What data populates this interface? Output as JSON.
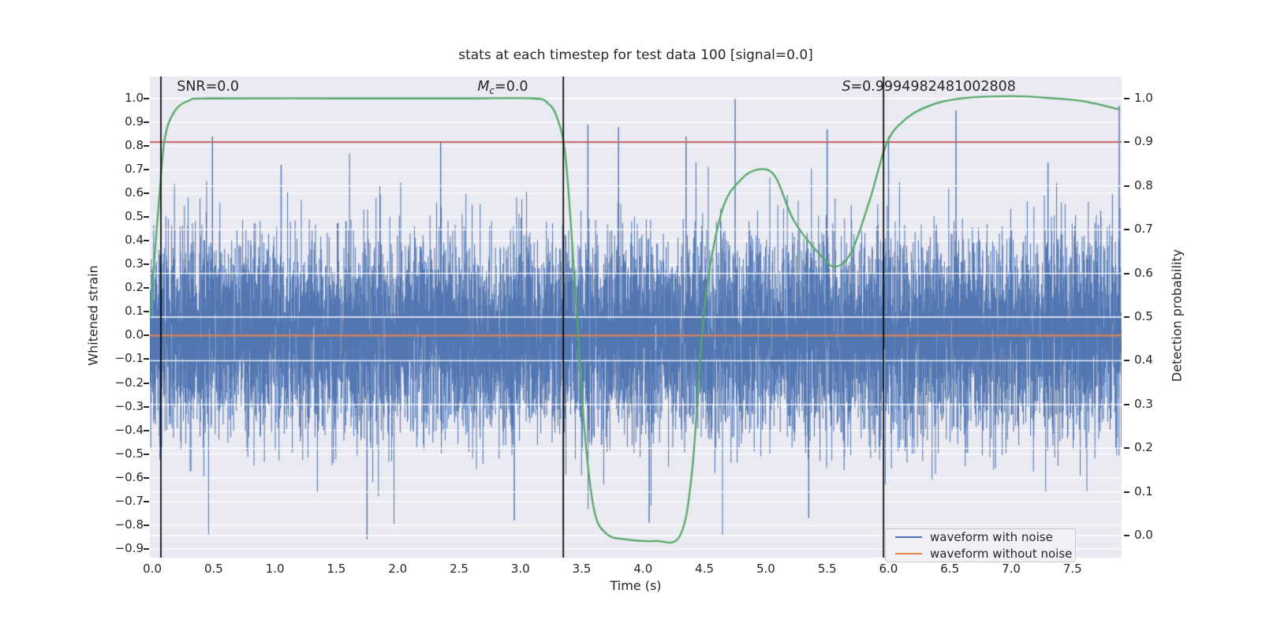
{
  "chart_data": {
    "type": "line",
    "title": "stats at each timestep for test data 100 [signal=0.0]",
    "xlabel": "Time (s)",
    "ylabel_left": "Whitened strain",
    "ylabel_right": "Detection probability",
    "xlim": [
      -0.02,
      7.9
    ],
    "ylim_left": [
      -0.937,
      1.093
    ],
    "ylim_right": [
      -0.05,
      1.05
    ],
    "x_ticks": [
      0.0,
      0.5,
      1.0,
      1.5,
      2.0,
      2.5,
      3.0,
      3.5,
      4.0,
      4.5,
      5.0,
      5.5,
      6.0,
      6.5,
      7.0,
      7.5
    ],
    "left_ticks": [
      1.0,
      0.9,
      0.8,
      0.7,
      0.6,
      0.5,
      0.4,
      0.3,
      0.2,
      0.1,
      0.0,
      -0.1,
      -0.2,
      -0.3,
      -0.4,
      -0.5,
      -0.6,
      -0.7,
      -0.8,
      -0.9
    ],
    "right_ticks": [
      1.0,
      0.9,
      0.8,
      0.7,
      0.6,
      0.5,
      0.4,
      0.3,
      0.2,
      0.1,
      0.0
    ],
    "grid": true,
    "annotations": [
      {
        "t": 0.2,
        "italic": "",
        "sub": "",
        "text": "SNR=0.0"
      },
      {
        "t": 2.65,
        "italic": "M",
        "sub": "c",
        "text": "=0.0"
      },
      {
        "t": 5.62,
        "italic": "S",
        "sub": "",
        "text": "=0.9994982481002808"
      }
    ],
    "threshold_right_axis": 0.9,
    "signal_without_noise_value": 0.0,
    "vlines_t": [
      0.07,
      3.35,
      5.96
    ],
    "detection_probability_keypoints": [
      [
        -0.02,
        0.5
      ],
      [
        0.05,
        0.75
      ],
      [
        0.1,
        0.905
      ],
      [
        0.18,
        0.97
      ],
      [
        0.3,
        0.995
      ],
      [
        0.46,
        1.0
      ],
      [
        1.5,
        1.0
      ],
      [
        2.6,
        1.0
      ],
      [
        3.1,
        1.0
      ],
      [
        3.22,
        0.99
      ],
      [
        3.3,
        0.955
      ],
      [
        3.37,
        0.86
      ],
      [
        3.45,
        0.55
      ],
      [
        3.52,
        0.25
      ],
      [
        3.6,
        0.06
      ],
      [
        3.7,
        0.005
      ],
      [
        3.85,
        -0.008
      ],
      [
        4.1,
        -0.012
      ],
      [
        4.3,
        0.0
      ],
      [
        4.4,
        0.15
      ],
      [
        4.5,
        0.52
      ],
      [
        4.64,
        0.74
      ],
      [
        4.8,
        0.815
      ],
      [
        4.95,
        0.838
      ],
      [
        5.08,
        0.82
      ],
      [
        5.23,
        0.72
      ],
      [
        5.45,
        0.64
      ],
      [
        5.57,
        0.615
      ],
      [
        5.7,
        0.65
      ],
      [
        5.85,
        0.77
      ],
      [
        5.99,
        0.9
      ],
      [
        6.15,
        0.955
      ],
      [
        6.35,
        0.985
      ],
      [
        6.6,
        1.0
      ],
      [
        7.0,
        1.005
      ],
      [
        7.35,
        1.0
      ],
      [
        7.6,
        0.993
      ],
      [
        7.88,
        0.975
      ]
    ],
    "noise_series": {
      "description": "whitened strain noise, zero mean",
      "sigma": 0.2,
      "seed": 1337,
      "samples_per_column": 6,
      "notable_spikes": [
        [
          0.49,
          0.84
        ],
        [
          1.05,
          0.72
        ],
        [
          1.75,
          -0.86
        ],
        [
          2.35,
          0.82
        ],
        [
          2.95,
          -0.78
        ],
        [
          3.35,
          -0.83
        ],
        [
          3.55,
          0.89
        ],
        [
          3.8,
          0.88
        ],
        [
          4.05,
          -0.79
        ],
        [
          4.35,
          0.84
        ],
        [
          4.75,
          1.0
        ],
        [
          5.35,
          -0.77
        ],
        [
          5.5,
          0.87
        ],
        [
          6.0,
          0.84
        ],
        [
          6.55,
          0.95
        ],
        [
          7.3,
          0.73
        ],
        [
          7.88,
          0.97
        ]
      ]
    },
    "palette": {
      "noise_blue": "#4C72B0",
      "signal_orange": "#DD8452",
      "probability_green": "#55A868",
      "threshold_red": "#C44E52",
      "vline_black": "#000000",
      "plot_bg": "#eaeaf2",
      "grid_white": "#ffffff",
      "text": "#262626"
    },
    "legend_position": "lower right"
  },
  "legend": {
    "items": [
      {
        "label": "waveform with noise",
        "color": "#4C72B0"
      },
      {
        "label": "waveform without noise",
        "color": "#DD8452"
      }
    ]
  }
}
